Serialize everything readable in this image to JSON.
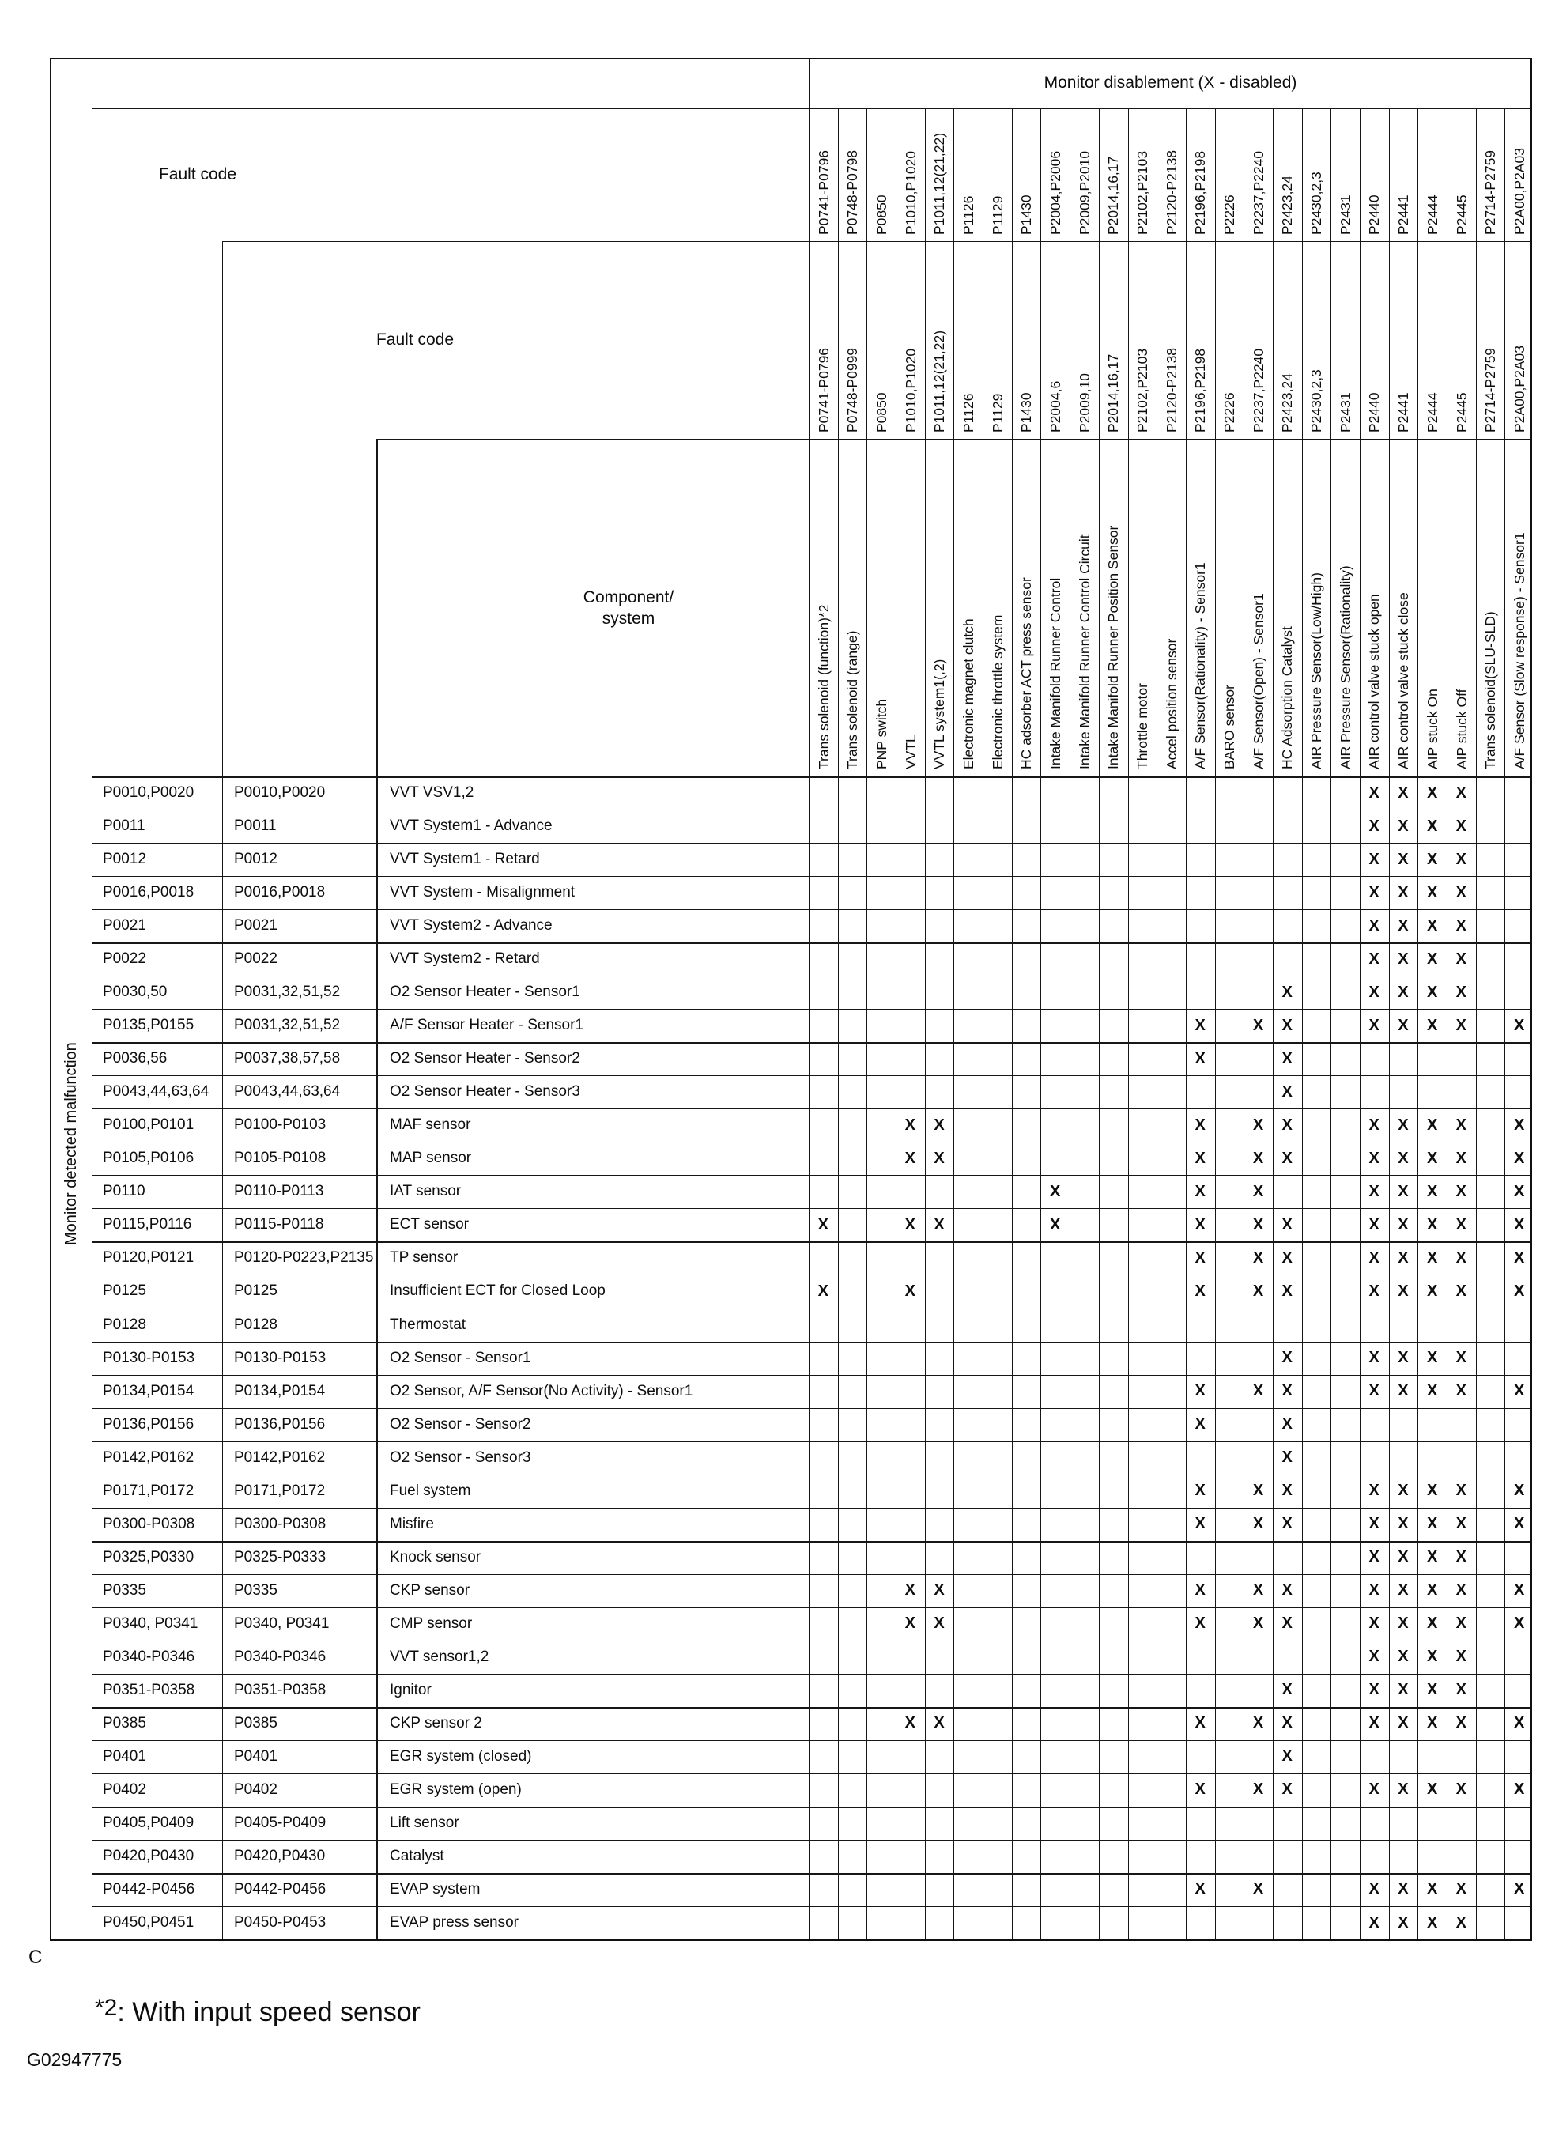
{
  "title": "Monitor disablement (X - disabled)",
  "header": {
    "fault_code_label_1": "Fault code",
    "fault_code_label_2": "Fault code",
    "component_label_line1": "Component/",
    "component_label_line2": "system"
  },
  "left_axis_label": "Monitor detected malfunction",
  "columns": [
    {
      "code_top": "P0741-P0796",
      "code_mid": "P0741-P0796",
      "description": "Trans solenoid (function)*2"
    },
    {
      "code_top": "P0748-P0798",
      "code_mid": "P0748-P0999",
      "description": "Trans solenoid (range)"
    },
    {
      "code_top": "P0850",
      "code_mid": "P0850",
      "description": "PNP switch"
    },
    {
      "code_top": "P1010,P1020",
      "code_mid": "P1010,P1020",
      "description": "VVTL"
    },
    {
      "code_top": "P1011,12(21,22)",
      "code_mid": "P1011,12(21,22)",
      "description": "VVTL system1(,2)"
    },
    {
      "code_top": "P1126",
      "code_mid": "P1126",
      "description": "Electronic magnet clutch"
    },
    {
      "code_top": "P1129",
      "code_mid": "P1129",
      "description": "Electronic throttle system"
    },
    {
      "code_top": "P1430",
      "code_mid": "P1430",
      "description": "HC adsorber ACT press sensor"
    },
    {
      "code_top": "P2004,P2006",
      "code_mid": "P2004,6",
      "description": "Intake Manifold Runner Control"
    },
    {
      "code_top": "P2009,P2010",
      "code_mid": "P2009,10",
      "description": "Intake Manifold Runner Control Circuit"
    },
    {
      "code_top": "P2014,16,17",
      "code_mid": "P2014,16,17",
      "description": "Intake Manifold Runner Position Sensor"
    },
    {
      "code_top": "P2102,P2103",
      "code_mid": "P2102,P2103",
      "description": "Throttle motor"
    },
    {
      "code_top": "P2120-P2138",
      "code_mid": "P2120-P2138",
      "description": "Accel position sensor"
    },
    {
      "code_top": "P2196,P2198",
      "code_mid": "P2196,P2198",
      "description": "A/F Sensor(Rationality) - Sensor1"
    },
    {
      "code_top": "P2226",
      "code_mid": "P2226",
      "description": "BARO sensor"
    },
    {
      "code_top": "P2237,P2240",
      "code_mid": "P2237,P2240",
      "description": "A/F Sensor(Open) - Sensor1"
    },
    {
      "code_top": "P2423,24",
      "code_mid": "P2423,24",
      "description": "HC Adsorption Catalyst"
    },
    {
      "code_top": "P2430,2,3",
      "code_mid": "P2430,2,3",
      "description": "AIR Pressure Sensor(Low/High)"
    },
    {
      "code_top": "P2431",
      "code_mid": "P2431",
      "description": "AIR Pressure Sensor(Rationality)"
    },
    {
      "code_top": "P2440",
      "code_mid": "P2440",
      "description": "AIR control valve stuck open"
    },
    {
      "code_top": "P2441",
      "code_mid": "P2441",
      "description": "AIR control valve stuck close"
    },
    {
      "code_top": "P2444",
      "code_mid": "P2444",
      "description": "AIP stuck On"
    },
    {
      "code_top": "P2445",
      "code_mid": "P2445",
      "description": "AIP stuck Off"
    },
    {
      "code_top": "P2714-P2759",
      "code_mid": "P2714-P2759",
      "description": "Trans solenoid(SLU-SLD)"
    },
    {
      "code_top": "P2A00,P2A03",
      "code_mid": "P2A00,P2A03",
      "description": "A/F Sensor (Slow response) - Sensor1"
    }
  ],
  "rows": [
    {
      "fault_code_1": "P0010,P0020",
      "fault_code_2": "P0010,P0020",
      "component": "VVT VSV1,2",
      "disabled": [
        20,
        21,
        22,
        23
      ]
    },
    {
      "fault_code_1": "P0011",
      "fault_code_2": "P0011",
      "component": "VVT System1 - Advance",
      "disabled": [
        20,
        21,
        22,
        23
      ]
    },
    {
      "fault_code_1": "P0012",
      "fault_code_2": "P0012",
      "component": "VVT System1 - Retard",
      "disabled": [
        20,
        21,
        22,
        23
      ]
    },
    {
      "fault_code_1": "P0016,P0018",
      "fault_code_2": "P0016,P0018",
      "component": "VVT System - Misalignment",
      "disabled": [
        20,
        21,
        22,
        23
      ]
    },
    {
      "fault_code_1": "P0021",
      "fault_code_2": "P0021",
      "component": "VVT System2 - Advance",
      "disabled": [
        20,
        21,
        22,
        23
      ]
    },
    {
      "fault_code_1": "P0022",
      "fault_code_2": "P0022",
      "component": "VVT System2 - Retard",
      "disabled": [
        20,
        21,
        22,
        23
      ]
    },
    {
      "fault_code_1": "P0030,50",
      "fault_code_2": "P0031,32,51,52",
      "component": "O2 Sensor Heater - Sensor1",
      "disabled": [
        17,
        20,
        21,
        22,
        23
      ]
    },
    {
      "fault_code_1": "P0135,P0155",
      "fault_code_2": "P0031,32,51,52",
      "component": "A/F Sensor Heater  - Sensor1",
      "disabled": [
        14,
        16,
        17,
        20,
        21,
        22,
        23,
        25
      ]
    },
    {
      "fault_code_1": "P0036,56",
      "fault_code_2": "P0037,38,57,58",
      "component": "O2 Sensor Heater - Sensor2",
      "disabled": [
        14,
        17
      ]
    },
    {
      "fault_code_1": "P0043,44,63,64",
      "fault_code_2": "P0043,44,63,64",
      "component": "O2 Sensor Heater - Sensor3",
      "disabled": [
        17
      ]
    },
    {
      "fault_code_1": "P0100,P0101",
      "fault_code_2": "P0100-P0103",
      "component": "MAF sensor",
      "disabled": [
        4,
        5,
        14,
        16,
        17,
        20,
        21,
        22,
        23,
        25
      ]
    },
    {
      "fault_code_1": "P0105,P0106",
      "fault_code_2": "P0105-P0108",
      "component": "MAP sensor",
      "disabled": [
        4,
        5,
        14,
        16,
        17,
        20,
        21,
        22,
        23,
        25
      ]
    },
    {
      "fault_code_1": "P0110",
      "fault_code_2": "P0110-P0113",
      "component": "IAT sensor",
      "disabled": [
        9,
        14,
        16,
        20,
        21,
        22,
        23,
        25
      ]
    },
    {
      "fault_code_1": "P0115,P0116",
      "fault_code_2": "P0115-P0118",
      "component": "ECT sensor",
      "disabled": [
        1,
        4,
        5,
        9,
        14,
        16,
        17,
        20,
        21,
        22,
        23,
        25
      ]
    },
    {
      "fault_code_1": "P0120,P0121",
      "fault_code_2": "P0120-P0223,P2135",
      "component": "TP sensor",
      "disabled": [
        14,
        16,
        17,
        20,
        21,
        22,
        23,
        25
      ]
    },
    {
      "fault_code_1": "P0125",
      "fault_code_2": "P0125",
      "component": "Insufficient ECT for Closed Loop",
      "disabled": [
        1,
        4,
        14,
        16,
        17,
        20,
        21,
        22,
        23,
        25
      ]
    },
    {
      "fault_code_1": "P0128",
      "fault_code_2": "P0128",
      "component": "Thermostat",
      "disabled": []
    },
    {
      "fault_code_1": "P0130-P0153",
      "fault_code_2": "P0130-P0153",
      "component": "O2 Sensor - Sensor1",
      "disabled": [
        17,
        20,
        21,
        22,
        23
      ]
    },
    {
      "fault_code_1": "P0134,P0154",
      "fault_code_2": "P0134,P0154",
      "component": "O2 Sensor, A/F Sensor(No Activity) - Sensor1",
      "disabled": [
        14,
        16,
        17,
        20,
        21,
        22,
        23,
        25
      ]
    },
    {
      "fault_code_1": "P0136,P0156",
      "fault_code_2": "P0136,P0156",
      "component": "O2 Sensor - Sensor2",
      "disabled": [
        14,
        17
      ]
    },
    {
      "fault_code_1": "P0142,P0162",
      "fault_code_2": "P0142,P0162",
      "component": "O2 Sensor - Sensor3",
      "disabled": [
        17
      ]
    },
    {
      "fault_code_1": "P0171,P0172",
      "fault_code_2": "P0171,P0172",
      "component": "Fuel system",
      "disabled": [
        14,
        16,
        17,
        20,
        21,
        22,
        23,
        25
      ]
    },
    {
      "fault_code_1": "P0300-P0308",
      "fault_code_2": "P0300-P0308",
      "component": "Misfire",
      "disabled": [
        14,
        16,
        17,
        20,
        21,
        22,
        23,
        25
      ]
    },
    {
      "fault_code_1": "P0325,P0330",
      "fault_code_2": "P0325-P0333",
      "component": "Knock sensor",
      "disabled": [
        20,
        21,
        22,
        23
      ]
    },
    {
      "fault_code_1": "P0335",
      "fault_code_2": "P0335",
      "component": "CKP sensor",
      "disabled": [
        4,
        5,
        14,
        16,
        17,
        20,
        21,
        22,
        23,
        25
      ]
    },
    {
      "fault_code_1": "P0340, P0341",
      "fault_code_2": "P0340, P0341",
      "component": "CMP sensor",
      "disabled": [
        4,
        5,
        14,
        16,
        17,
        20,
        21,
        22,
        23,
        25
      ]
    },
    {
      "fault_code_1": "P0340-P0346",
      "fault_code_2": "P0340-P0346",
      "component": "VVT sensor1,2",
      "disabled": [
        20,
        21,
        22,
        23
      ]
    },
    {
      "fault_code_1": "P0351-P0358",
      "fault_code_2": "P0351-P0358",
      "component": "Ignitor",
      "disabled": [
        17,
        20,
        21,
        22,
        23
      ]
    },
    {
      "fault_code_1": "P0385",
      "fault_code_2": "P0385",
      "component": "CKP sensor 2",
      "disabled": [
        4,
        5,
        14,
        16,
        17,
        20,
        21,
        22,
        23,
        25
      ]
    },
    {
      "fault_code_1": "P0401",
      "fault_code_2": "P0401",
      "component": "EGR system (closed)",
      "disabled": [
        17
      ]
    },
    {
      "fault_code_1": "P0402",
      "fault_code_2": "P0402",
      "component": "EGR system (open)",
      "disabled": [
        14,
        16,
        17,
        20,
        21,
        22,
        23,
        25
      ]
    },
    {
      "fault_code_1": "P0405,P0409",
      "fault_code_2": "P0405-P0409",
      "component": "Lift sensor",
      "disabled": []
    },
    {
      "fault_code_1": "P0420,P0430",
      "fault_code_2": "P0420,P0430",
      "component": "Catalyst",
      "disabled": []
    },
    {
      "fault_code_1": "P0442-P0456",
      "fault_code_2": "P0442-P0456",
      "component": "EVAP system",
      "disabled": [
        14,
        16,
        20,
        21,
        22,
        23,
        25
      ]
    },
    {
      "fault_code_1": "P0450,P0451",
      "fault_code_2": "P0450-P0453",
      "component": "EVAP press sensor",
      "disabled": [
        20,
        21,
        22,
        23
      ]
    }
  ],
  "x_mark": "X",
  "footer": {
    "page_mark": "C",
    "footnote_prefix": "*2",
    "footnote_text": ": With input speed sensor",
    "figure_id": "G02947775"
  }
}
